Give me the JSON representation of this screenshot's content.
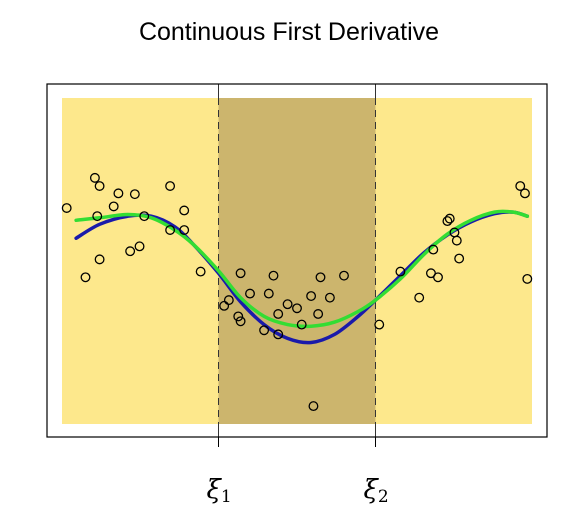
{
  "chart_data": {
    "type": "scatter",
    "title": "Continuous First Derivative",
    "xlabel": "",
    "ylabel": "",
    "xlim": [
      0,
      1
    ],
    "ylim": [
      -2,
      2
    ],
    "grid": false,
    "knots": [
      {
        "symbol": "ξ",
        "subscript": "1",
        "x": 0.333
      },
      {
        "symbol": "ξ",
        "subscript": "2",
        "x": 0.667
      }
    ],
    "regions": [
      {
        "from": 0.0,
        "to": 0.333,
        "color": "#fde88c"
      },
      {
        "from": 0.333,
        "to": 0.667,
        "color": "#ccb56d"
      },
      {
        "from": 0.667,
        "to": 1.0,
        "color": "#fde88c"
      }
    ],
    "points": [
      {
        "x": 0.01,
        "y": 0.65
      },
      {
        "x": 0.05,
        "y": -0.2
      },
      {
        "x": 0.07,
        "y": 1.02
      },
      {
        "x": 0.075,
        "y": 0.55
      },
      {
        "x": 0.08,
        "y": 0.92
      },
      {
        "x": 0.08,
        "y": 0.02
      },
      {
        "x": 0.11,
        "y": 0.67
      },
      {
        "x": 0.12,
        "y": 0.83
      },
      {
        "x": 0.155,
        "y": 0.82
      },
      {
        "x": 0.145,
        "y": 0.12
      },
      {
        "x": 0.165,
        "y": 0.18
      },
      {
        "x": 0.175,
        "y": 0.55
      },
      {
        "x": 0.23,
        "y": 0.92
      },
      {
        "x": 0.23,
        "y": 0.38
      },
      {
        "x": 0.26,
        "y": 0.62
      },
      {
        "x": 0.26,
        "y": 0.38
      },
      {
        "x": 0.295,
        "y": -0.13
      },
      {
        "x": 0.345,
        "y": -0.55
      },
      {
        "x": 0.355,
        "y": -0.48
      },
      {
        "x": 0.375,
        "y": -0.68
      },
      {
        "x": 0.38,
        "y": -0.74
      },
      {
        "x": 0.38,
        "y": -0.15
      },
      {
        "x": 0.4,
        "y": -0.4
      },
      {
        "x": 0.43,
        "y": -0.85
      },
      {
        "x": 0.44,
        "y": -0.4
      },
      {
        "x": 0.45,
        "y": -0.18
      },
      {
        "x": 0.46,
        "y": -0.65
      },
      {
        "x": 0.46,
        "y": -0.9
      },
      {
        "x": 0.48,
        "y": -0.53
      },
      {
        "x": 0.5,
        "y": -0.58
      },
      {
        "x": 0.51,
        "y": -0.78
      },
      {
        "x": 0.53,
        "y": -0.43
      },
      {
        "x": 0.545,
        "y": -0.65
      },
      {
        "x": 0.55,
        "y": -0.2
      },
      {
        "x": 0.535,
        "y": -1.78
      },
      {
        "x": 0.57,
        "y": -0.45
      },
      {
        "x": 0.6,
        "y": -0.18
      },
      {
        "x": 0.675,
        "y": -0.78
      },
      {
        "x": 0.72,
        "y": -0.13
      },
      {
        "x": 0.76,
        "y": -0.45
      },
      {
        "x": 0.785,
        "y": -0.15
      },
      {
        "x": 0.79,
        "y": 0.14
      },
      {
        "x": 0.8,
        "y": -0.2
      },
      {
        "x": 0.82,
        "y": 0.49
      },
      {
        "x": 0.825,
        "y": 0.52
      },
      {
        "x": 0.835,
        "y": 0.35
      },
      {
        "x": 0.84,
        "y": 0.25
      },
      {
        "x": 0.845,
        "y": 0.03
      },
      {
        "x": 0.985,
        "y": 0.83
      },
      {
        "x": 0.975,
        "y": 0.92
      },
      {
        "x": 0.99,
        "y": -0.22
      }
    ],
    "series": [
      {
        "color": "#1a1aaa",
        "x": [
          0.03,
          0.08,
          0.14,
          0.19,
          0.24,
          0.28,
          0.333,
          0.38,
          0.43,
          0.48,
          0.53,
          0.58,
          0.63,
          0.667,
          0.72,
          0.77,
          0.82,
          0.87,
          0.92,
          0.96,
          0.99
        ],
        "y": [
          0.28,
          0.45,
          0.55,
          0.55,
          0.42,
          0.2,
          -0.15,
          -0.5,
          -0.78,
          -0.95,
          -1.0,
          -0.9,
          -0.68,
          -0.48,
          -0.18,
          0.1,
          0.32,
          0.48,
          0.58,
          0.6,
          0.55
        ]
      },
      {
        "color": "#33dd33",
        "x": [
          0.03,
          0.08,
          0.14,
          0.19,
          0.24,
          0.28,
          0.333,
          0.38,
          0.43,
          0.48,
          0.53,
          0.58,
          0.63,
          0.667,
          0.72,
          0.77,
          0.82,
          0.87,
          0.92,
          0.96,
          0.99
        ],
        "y": [
          0.5,
          0.53,
          0.57,
          0.53,
          0.38,
          0.2,
          -0.12,
          -0.45,
          -0.68,
          -0.78,
          -0.8,
          -0.75,
          -0.62,
          -0.48,
          -0.22,
          0.08,
          0.33,
          0.5,
          0.6,
          0.6,
          0.55
        ]
      }
    ]
  }
}
